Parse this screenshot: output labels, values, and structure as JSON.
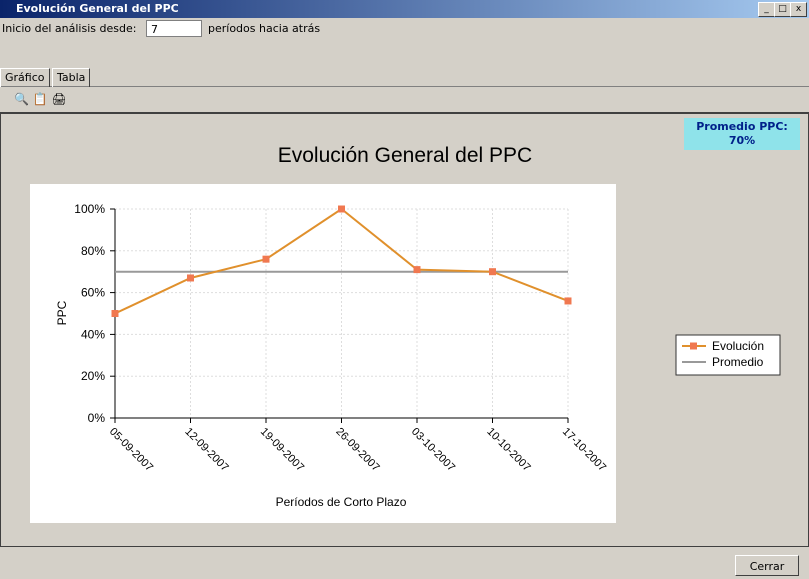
{
  "window": {
    "title": "Evolución General del PPC"
  },
  "controls": {
    "start_label": "Inicio del análisis desde:",
    "periods": 7,
    "periods_suffix": "períodos hacia atrás"
  },
  "tabs": [
    "Gráfico",
    "Tabla"
  ],
  "summary": {
    "label": "Promedio PPC:",
    "value": "70%"
  },
  "buttons": {
    "close": "Cerrar"
  },
  "chart_data": {
    "type": "line",
    "title": "Evolución General del PPC",
    "x_label": "Períodos de Corto Plazo",
    "y_label": "PPC",
    "categories": [
      "05-09-2007",
      "12-09-2007",
      "19-09-2007",
      "26-09-2007",
      "03-10-2007",
      "10-10-2007",
      "17-10-2007"
    ],
    "series": [
      {
        "name": "Evolución",
        "color": "#e0902c",
        "marker_color": "#f07850",
        "markers": true,
        "values": [
          50,
          67,
          76,
          100,
          71,
          70,
          56
        ]
      },
      {
        "name": "Promedio",
        "color": "#999999",
        "markers": false,
        "values": [
          70,
          70,
          70,
          70,
          70,
          70,
          70
        ]
      }
    ],
    "ylim": [
      0,
      100
    ],
    "yticks": [
      {
        "value": 0,
        "label": "0%"
      },
      {
        "value": 20,
        "label": "20%"
      },
      {
        "value": 40,
        "label": "40%"
      },
      {
        "value": 60,
        "label": "60%"
      },
      {
        "value": 80,
        "label": "80%"
      },
      {
        "value": 100,
        "label": "100%"
      }
    ],
    "grid": true,
    "legend": "right"
  }
}
